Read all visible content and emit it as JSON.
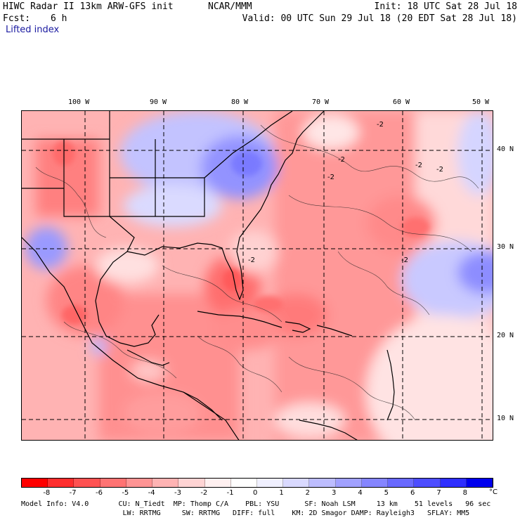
{
  "header": {
    "title_left": "HIWC Radar II 13km ARW-GFS init",
    "org": "NCAR/MMM",
    "init": "Init: 18 UTC Sat 28 Jul 18",
    "fcst_label": "Fcst:",
    "fcst_value": "6 h",
    "valid": "Valid: 00 UTC Sun 29 Jul 18 (20 EDT Sat 28 Jul 18)",
    "field": "Lifted index"
  },
  "map": {
    "lon_labels": [
      "100 W",
      "90 W",
      "80 W",
      "70 W",
      "60 W",
      "50 W"
    ],
    "lat_labels": [
      "40 N",
      "30 N",
      "20 N",
      "10 N"
    ],
    "contour_labels": [
      "-2",
      "-2",
      "-2",
      "-2",
      "-2",
      "-2",
      "-2"
    ]
  },
  "colorbar": {
    "colors": [
      "#ff0000",
      "#ff2e2e",
      "#ff5252",
      "#ff7373",
      "#ff9494",
      "#ffb3b3",
      "#ffd4d4",
      "#fff0f0",
      "#ffffff",
      "#f0f0ff",
      "#d9d9ff",
      "#bdbdff",
      "#a1a1ff",
      "#8585ff",
      "#6969ff",
      "#4d4dff",
      "#2e2eff",
      "#0000ee"
    ],
    "tick_labels": [
      "-8",
      "-7",
      "-6",
      "-5",
      "-4",
      "-3",
      "-2",
      "-1",
      "0",
      "1",
      "2",
      "3",
      "4",
      "5",
      "6",
      "7",
      "8"
    ],
    "unit": "°C"
  },
  "footer": {
    "line1": "Model Info: V4.0       CU: N_Tiedt  MP: Thomp C/A    PBL: YSU      SF: Noah LSM     13 km    51 levels   96 sec",
    "line2": "                        LW: RRTMG     SW: RRTMG   DIFF: full    KM: 2D Smagor DAMP: Rayleigh3   SFLAY: MM5"
  }
}
